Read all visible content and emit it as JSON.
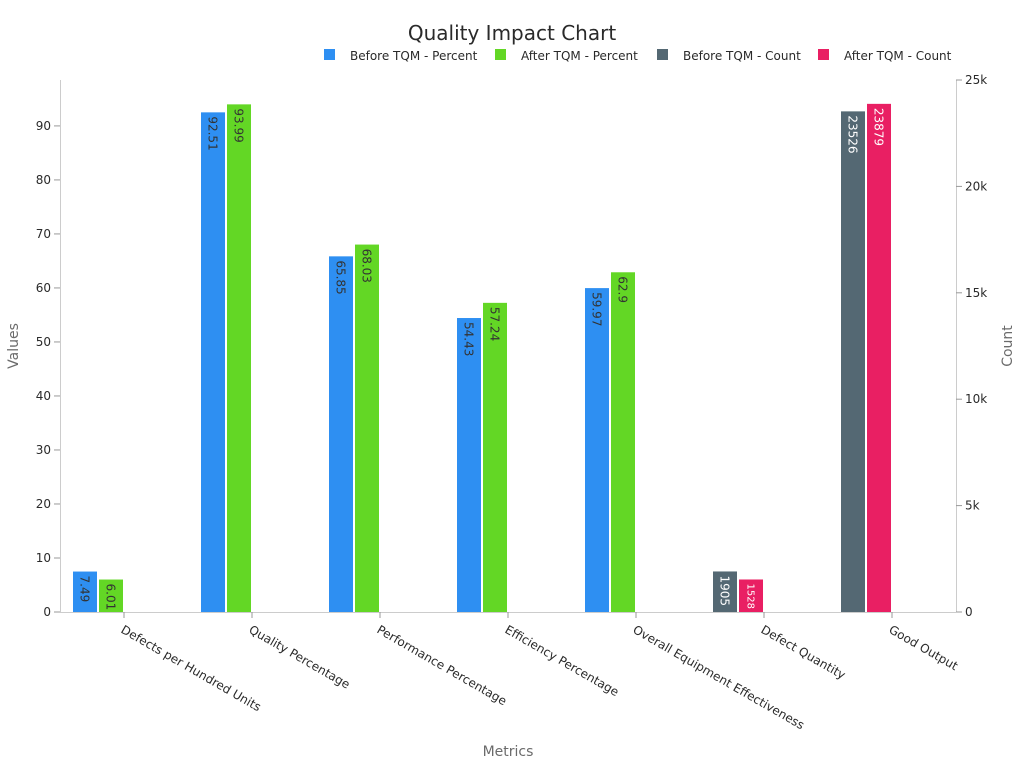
{
  "chart_data": {
    "type": "bar",
    "title": "Quality Impact Chart",
    "xlabel": "Metrics",
    "ylabel": "Values",
    "y2label": "Count",
    "categories": [
      "Defects per Hundred Units",
      "Quality Percentage",
      "Performance Percentage",
      "Efficiency Percentage",
      "Overall Equipment Effectiveness",
      "Defect Quantity",
      "Good Output"
    ],
    "ylim": [
      0,
      98.5
    ],
    "y2lim": [
      0,
      25000
    ],
    "yticks": [
      "0",
      "10",
      "20",
      "30",
      "40",
      "50",
      "60",
      "70",
      "80",
      "90"
    ],
    "y2ticks": [
      "0",
      "5k",
      "10k",
      "15k",
      "20k",
      "25k"
    ],
    "legend_position": "top-right",
    "grid": false,
    "series": [
      {
        "name": "Before TQM - Percent",
        "axis": "left",
        "color": "#2e8ff2",
        "values": [
          7.49,
          92.51,
          65.85,
          54.43,
          59.97,
          null,
          null
        ],
        "labels": [
          "7.49",
          "92.51",
          "65.85",
          "54.43",
          "59.97",
          "",
          ""
        ]
      },
      {
        "name": "After TQM - Percent",
        "axis": "left",
        "color": "#63d725",
        "values": [
          6.01,
          93.99,
          68.03,
          57.24,
          62.9,
          null,
          null
        ],
        "labels": [
          "6.01",
          "93.99",
          "68.03",
          "57.24",
          "62.9",
          "",
          ""
        ]
      },
      {
        "name": "Before TQM - Count",
        "axis": "right",
        "color": "#546873",
        "values": [
          null,
          null,
          null,
          null,
          null,
          1905,
          23526
        ],
        "labels": [
          "",
          "",
          "",
          "",
          "",
          "1905",
          "23526"
        ]
      },
      {
        "name": "After TQM - Count",
        "axis": "right",
        "color": "#e91f63",
        "values": [
          null,
          null,
          null,
          null,
          null,
          1528,
          23879
        ],
        "labels": [
          "",
          "",
          "",
          "",
          "",
          "1528",
          "23879"
        ]
      }
    ]
  }
}
